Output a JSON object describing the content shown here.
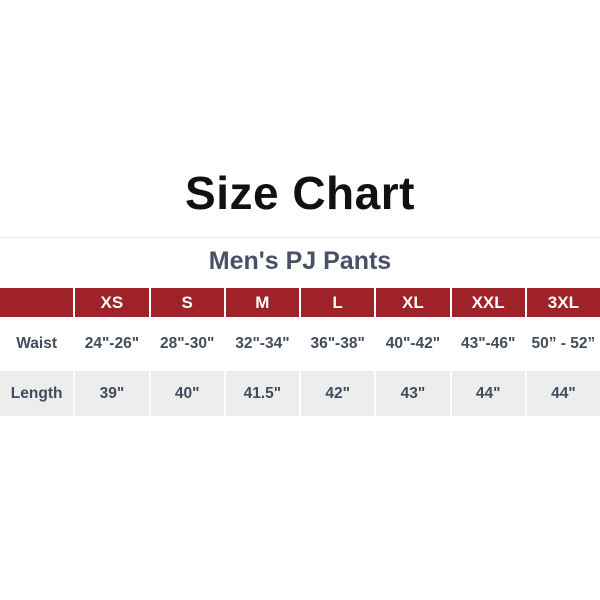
{
  "title": "Size Chart",
  "subtitle": "Men's PJ Pants",
  "table": {
    "columns": [
      "",
      "XS",
      "S",
      "M",
      "L",
      "XL",
      "XXL",
      "3XL"
    ],
    "rows": [
      {
        "label": "Waist",
        "values": [
          "24\"-26\"",
          "28\"-30\"",
          "32\"-34\"",
          "36\"-38\"",
          "40\"-42\"",
          "43\"-46\"",
          "50” - 52”"
        ]
      },
      {
        "label": "Length",
        "values": [
          "39\"",
          "40\"",
          "41.5\"",
          "42\"",
          "43\"",
          "44\"",
          "44\""
        ]
      }
    ]
  },
  "colors": {
    "header_bg": "#9E2227",
    "header_text": "#FFFFFF",
    "body_text": "#414C5C",
    "alt_row_bg": "#EDEDED",
    "title_text": "#111111",
    "subtitle_text": "#475163",
    "divider": "#E8E8E8"
  }
}
